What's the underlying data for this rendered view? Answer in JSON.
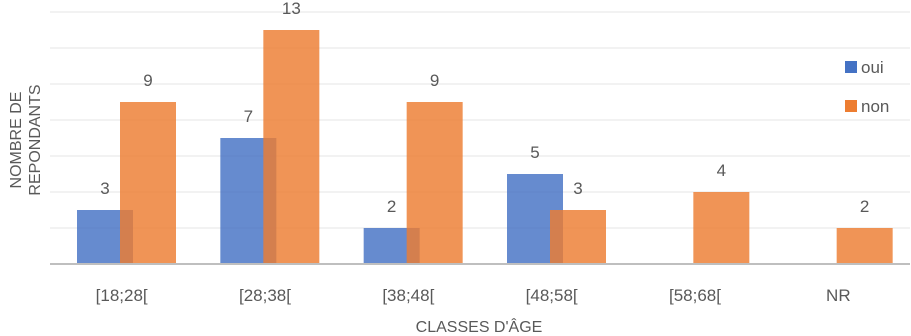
{
  "chart_data": {
    "type": "bar",
    "categories": [
      "[18;28[",
      "[28;38[",
      "[38;48[",
      "[48;58[",
      "[58;68[",
      "NR"
    ],
    "series": [
      {
        "name": "oui",
        "color": "#4472c4",
        "values": [
          3,
          7,
          2,
          5,
          null,
          null
        ]
      },
      {
        "name": "non",
        "color": "#ed7d31",
        "values": [
          9,
          13,
          9,
          3,
          4,
          2
        ]
      }
    ],
    "data_labels": {
      "oui": [
        "3",
        "7",
        "2",
        "5",
        "",
        ""
      ],
      "non": [
        "9",
        "13",
        "9",
        "3",
        "4",
        "2"
      ]
    },
    "xlabel": "CLASSES D'ÂGE",
    "ylabel_lines": [
      "NOMBRE DE",
      "REPONDANTS"
    ],
    "ylim": [
      0,
      14
    ],
    "grid": true,
    "legend_position": "right"
  }
}
